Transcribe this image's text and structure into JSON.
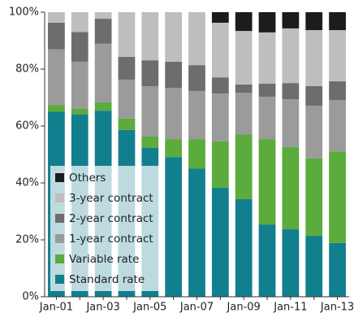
{
  "chart_data": {
    "type": "stacked-bar",
    "categories": [
      "Jan-01",
      null,
      "Jan-03",
      null,
      "Jan-05",
      null,
      "Jan-07",
      null,
      "Jan-09",
      null,
      "Jan-11",
      null,
      "Jan-13"
    ],
    "series": [
      {
        "name": "Standard rate",
        "color": "#127f8e",
        "values": [
          65,
          64,
          65.4,
          58.6,
          52.3,
          49.1,
          45.1,
          38.3,
          34.3,
          25.4,
          23.7,
          21.4,
          18.9
        ]
      },
      {
        "name": "Variable rate",
        "color": "#5bab3d",
        "values": [
          2.4,
          2,
          2.9,
          4,
          4,
          6.3,
          10.3,
          16.3,
          22.7,
          30,
          28.9,
          27.2,
          32.2
        ]
      },
      {
        "name": "1-year contract",
        "color": "#9b9b9b",
        "values": [
          19.6,
          16.6,
          20.6,
          13.7,
          17.7,
          18,
          16.9,
          16.8,
          14.7,
          14.9,
          16.8,
          18.5,
          18
        ]
      },
      {
        "name": "2-year contract",
        "color": "#6d6d6d",
        "values": [
          9.3,
          10.4,
          8.8,
          8,
          9.1,
          9.2,
          9.1,
          5.7,
          2.9,
          4.6,
          5.7,
          6.9,
          6.6
        ]
      },
      {
        "name": "3-year contract",
        "color": "#bebebe",
        "values": [
          3.7,
          7,
          2.3,
          15.7,
          16.9,
          17.4,
          18.6,
          19.2,
          18.8,
          18,
          19.2,
          19.7,
          18
        ]
      },
      {
        "name": "Others",
        "color": "#1c1c1c",
        "values": [
          0,
          0,
          0,
          0,
          0,
          0,
          0,
          3.7,
          6.6,
          7.1,
          5.7,
          6.3,
          6.3
        ]
      }
    ],
    "ylim": [
      0,
      100
    ],
    "yticks": [
      {
        "value": 0,
        "label": "0%"
      },
      {
        "value": 20,
        "label": "20%"
      },
      {
        "value": 40,
        "label": "40%"
      },
      {
        "value": 60,
        "label": "60%"
      },
      {
        "value": 80,
        "label": "80%"
      },
      {
        "value": 100,
        "label": "100%"
      }
    ],
    "grid": false,
    "legend": "bottom-left"
  }
}
